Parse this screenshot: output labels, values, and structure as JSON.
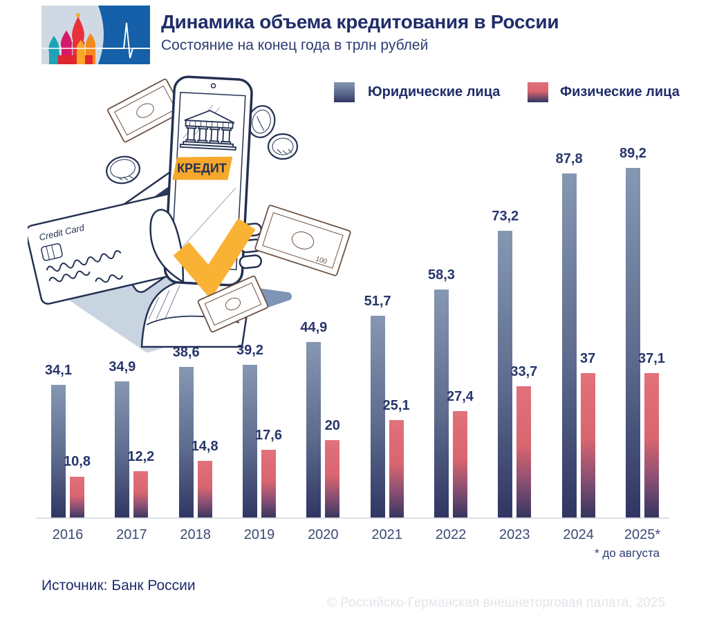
{
  "header": {
    "title": "Динамика объема кредитования в России",
    "subtitle": "Состояние на конец года в трлн рублей"
  },
  "legend": [
    {
      "label": "Юридические лица",
      "color_top": "#8697b3",
      "color_bottom": "#2f3563"
    },
    {
      "label": "Физические лица",
      "color_top": "#e1717b",
      "color_bottom": "#2f3563"
    }
  ],
  "illustration": {
    "credit_button_label": "КРЕДИТ",
    "card_label": "Credit Card",
    "bill_denomination": "100"
  },
  "chart_data": {
    "type": "bar",
    "title": "Динамика объема кредитования в России",
    "subtitle": "Состояние на конец года в трлн рублей",
    "unit": "трлн рублей",
    "categories": [
      "2016",
      "2017",
      "2018",
      "2019",
      "2020",
      "2021",
      "2022",
      "2023",
      "2024",
      "2025*"
    ],
    "series": [
      {
        "name": "Юридические лица",
        "values": [
          34.1,
          34.9,
          38.6,
          39.2,
          44.9,
          51.7,
          58.3,
          73.2,
          87.8,
          89.2
        ],
        "labels": [
          "34,1",
          "34,9",
          "38,6",
          "39,2",
          "44,9",
          "51,7",
          "58,3",
          "73,2",
          "87,8",
          "89,2"
        ]
      },
      {
        "name": "Физические лица",
        "values": [
          10.8,
          12.2,
          14.8,
          17.6,
          20,
          25.1,
          27.4,
          33.7,
          37,
          37.1
        ],
        "labels": [
          "10,8",
          "12,2",
          "14,8",
          "17,6",
          "20",
          "25,1",
          "27,4",
          "33,7",
          "37",
          "37,1"
        ]
      }
    ],
    "ylim": [
      0,
      95
    ],
    "grid": false,
    "legend_position": "top",
    "footnote": "* до августа"
  },
  "footer": {
    "source": "Источник: Банк России",
    "footnote": "* до августа",
    "copyright": "© Российско-Германская внешнеторговая палата, 2025"
  },
  "colors": {
    "accent_orange": "#f6a82c",
    "checkmark_orange": "#f9b234",
    "title_navy": "#1f2d69",
    "logo_blue": "#1560a8",
    "bar_legal_top": "#8697b3",
    "bar_individual_top": "#e1717b",
    "bar_bottom": "#2f3563",
    "axis_line": "#dcdfe4",
    "copyright_gray": "#e2e5e9"
  }
}
